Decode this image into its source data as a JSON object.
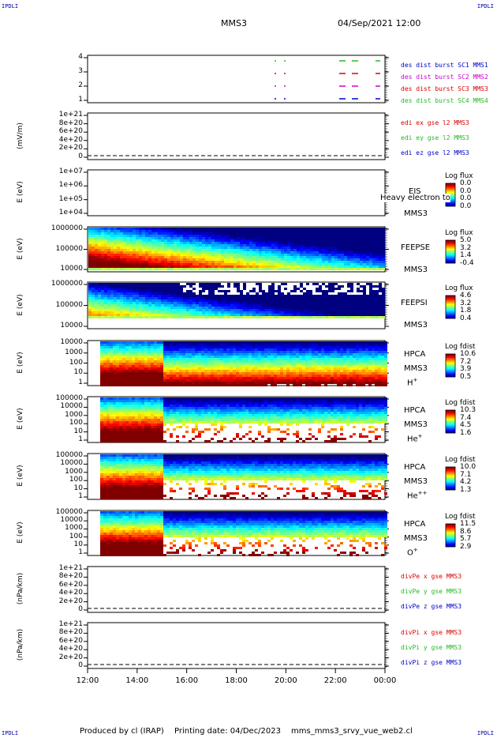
{
  "header": {
    "corner_label": "IPDLI",
    "spacecraft": "MMS3",
    "datetime": "04/Sep/2021 12:00"
  },
  "footer": {
    "producer": "Produced by cl (IRAP)",
    "printing": "Printing date: 04/Dec/2023",
    "file": "mms_mms3_srvy_vue_web2.cl"
  },
  "x_ticks": [
    "12:00",
    "14:00",
    "16:00",
    "18:00",
    "20:00",
    "22:00",
    "00:00"
  ],
  "colors": {
    "red": "#dd0000",
    "green": "#22bb22",
    "magenta": "#cc00cc",
    "blue": "#0000cc"
  },
  "chart_data": [
    {
      "type": "scatter",
      "panel": "burst",
      "yticks": [
        "4",
        "3",
        "2",
        "1"
      ],
      "legend": [
        "des dist burst SC1 MMS1",
        "des dist burst SC2 MMS2",
        "des dist burst SC3 MMS3",
        "des dist burst SC4 MMS4"
      ]
    },
    {
      "type": "line",
      "panel": "edi",
      "ylabel": "(mV/m)",
      "yticks": [
        "1e+21",
        "8e+20",
        "6e+20",
        "4e+20",
        "2e+20",
        "0"
      ],
      "legend": [
        "edi ex gse l2 MMS3",
        "edi ey gse l2 MMS3",
        "edi ez gse l2 MMS3"
      ]
    },
    {
      "type": "heatmap",
      "panel": "eis",
      "ylabel": "E (eV)",
      "yticks": [
        "1e+07",
        "1e+06",
        "1e+05",
        "1e+04"
      ],
      "inst": [
        "EIS",
        "MMS3"
      ],
      "overlay": "Heavy electron to",
      "cb_title": "Log flux",
      "cb_values": [
        "0.0",
        "0.0",
        "0.0",
        "0.0"
      ]
    },
    {
      "type": "heatmap",
      "panel": "feepse",
      "ylabel": "E (eV)",
      "yticks": [
        "1000000",
        "100000",
        "10000"
      ],
      "inst": [
        "FEEPSE",
        "MMS3"
      ],
      "cb_title": "Log flux",
      "cb_values": [
        "5.0",
        "3.2",
        "1.4",
        "-0.4"
      ]
    },
    {
      "type": "heatmap",
      "panel": "feepsi",
      "ylabel": "E (eV)",
      "yticks": [
        "1000000",
        "100000",
        "10000"
      ],
      "inst": [
        "FEEPSI",
        "MMS3"
      ],
      "cb_title": "Log flux",
      "cb_values": [
        "4.6",
        "3.2",
        "1.8",
        "0.4"
      ]
    },
    {
      "type": "heatmap",
      "panel": "hpca_h",
      "ylabel": "E (eV)",
      "yticks": [
        "10000",
        "1000",
        "100",
        "10",
        "1"
      ],
      "inst": [
        "HPCA",
        "MMS3"
      ],
      "species": "H",
      "species_sup": "+",
      "cb_title": "Log fdist",
      "cb_values": [
        "10.6",
        "7.2",
        "3.9",
        "0.5"
      ]
    },
    {
      "type": "heatmap",
      "panel": "hpca_he",
      "ylabel": "E (eV)",
      "yticks": [
        "100000",
        "10000",
        "1000",
        "100",
        "10",
        "1"
      ],
      "inst": [
        "HPCA",
        "MMS3"
      ],
      "species": "He",
      "species_sup": "+",
      "cb_title": "Log fdist",
      "cb_values": [
        "10.3",
        "7.4",
        "4.5",
        "1.6"
      ]
    },
    {
      "type": "heatmap",
      "panel": "hpca_hepp",
      "ylabel": "E (eV)",
      "yticks": [
        "100000",
        "10000",
        "1000",
        "100",
        "10",
        "1"
      ],
      "inst": [
        "HPCA",
        "MMS3"
      ],
      "species": "He",
      "species_sup": "++",
      "cb_title": "Log fdist",
      "cb_values": [
        "10.0",
        "7.1",
        "4.2",
        "1.3"
      ]
    },
    {
      "type": "heatmap",
      "panel": "hpca_o",
      "ylabel": "E (eV)",
      "yticks": [
        "100000",
        "10000",
        "1000",
        "100",
        "10",
        "1"
      ],
      "inst": [
        "HPCA",
        "MMS3"
      ],
      "species": "O",
      "species_sup": "+",
      "cb_title": "Log fdist",
      "cb_values": [
        "11.5",
        "8.6",
        "5.7",
        "2.9"
      ]
    },
    {
      "type": "line",
      "panel": "divpe",
      "ylabel": "(nPa/km)",
      "yticks": [
        "1e+21",
        "8e+20",
        "6e+20",
        "4e+20",
        "2e+20",
        "0"
      ],
      "legend": [
        "divPe x gse MMS3",
        "divPe y gse MMS3",
        "divPe z gse MMS3"
      ]
    },
    {
      "type": "line",
      "panel": "divpi",
      "ylabel": "(nPa/km)",
      "yticks": [
        "1e+21",
        "8e+20",
        "6e+20",
        "4e+20",
        "2e+20",
        "0"
      ],
      "legend": [
        "divPi x gse MMS3",
        "divPi y gse MMS3",
        "divPi z gse MMS3"
      ]
    }
  ]
}
